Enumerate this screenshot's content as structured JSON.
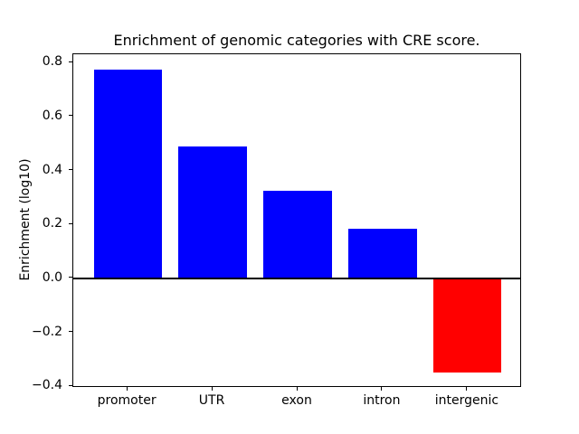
{
  "chart_data": {
    "type": "bar",
    "title": "Enrichment of genomic categories with CRE score.",
    "xlabel": "",
    "ylabel": "Enrichment (log10)",
    "categories": [
      "promoter",
      "UTR",
      "exon",
      "intron",
      "intergenic"
    ],
    "values": [
      0.775,
      0.49,
      0.325,
      0.185,
      -0.35
    ],
    "bar_colors": [
      "#0000ff",
      "#0000ff",
      "#0000ff",
      "#0000ff",
      "#ff0000"
    ],
    "positive_color": "#0000ff",
    "negative_color": "#ff0000",
    "ylim": [
      -0.406,
      0.831
    ],
    "yticks": [
      0.8,
      0.6,
      0.4,
      0.2,
      0.0,
      -0.2,
      -0.4
    ],
    "ytick_labels": [
      "0.8",
      "0.6",
      "0.4",
      "0.2",
      "0.0",
      "−0.2",
      "−0.4"
    ],
    "bar_width_fraction": 0.8,
    "x_margin": 0.64,
    "zero_line": true,
    "grid": false,
    "legend": null,
    "background_color": "#ffffff",
    "axes_edge_color": "#000000"
  }
}
